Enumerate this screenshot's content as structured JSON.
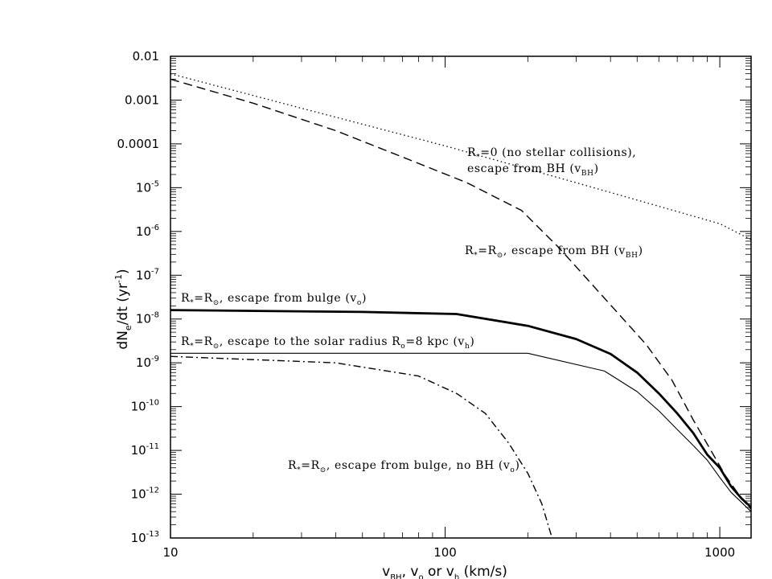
{
  "chart_data": {
    "type": "line",
    "title": "",
    "x_scale": "log",
    "y_scale": "log",
    "xlim": [
      10,
      1300
    ],
    "ylim": [
      1e-13,
      0.01
    ],
    "xlabel": {
      "main": "v",
      "s1": "BH",
      "m1": ", v",
      "s2": "o",
      "m2": " or v",
      "s3": "h",
      "m3": " (km/s)"
    },
    "ylabel": {
      "main": "dN",
      "sub": "e",
      "rest": "/dt (yr",
      "sup": "-1",
      "end": ")"
    },
    "x_ticks": [
      {
        "value": 10,
        "label": "10"
      },
      {
        "value": 100,
        "label": "100"
      },
      {
        "value": 1000,
        "label": "1000"
      }
    ],
    "y_ticks": [
      {
        "value": 0.01,
        "label": "0.01"
      },
      {
        "value": 0.001,
        "label": "0.001"
      },
      {
        "value": 0.0001,
        "label": "0.0001"
      },
      {
        "value": 1e-05,
        "base": "10",
        "exp": "-5"
      },
      {
        "value": 1e-06,
        "base": "10",
        "exp": "-6"
      },
      {
        "value": 1e-07,
        "base": "10",
        "exp": "-7"
      },
      {
        "value": 1e-08,
        "base": "10",
        "exp": "-8"
      },
      {
        "value": 1e-09,
        "base": "10",
        "exp": "-9"
      },
      {
        "value": 1e-10,
        "base": "10",
        "exp": "-10"
      },
      {
        "value": 1e-11,
        "base": "10",
        "exp": "-11"
      },
      {
        "value": 1e-12,
        "base": "10",
        "exp": "-12"
      },
      {
        "value": 1e-13,
        "base": "10",
        "exp": "-13"
      }
    ],
    "series": [
      {
        "style": "dotted",
        "points": [
          [
            10,
            0.004
          ],
          [
            30,
            0.00065
          ],
          [
            100,
            9e-05
          ],
          [
            300,
            1.3e-05
          ],
          [
            1000,
            1.5e-06
          ],
          [
            1300,
            6.5e-07
          ]
        ]
      },
      {
        "style": "dashed",
        "points": [
          [
            10,
            0.003
          ],
          [
            20,
            0.00085
          ],
          [
            40,
            0.0002
          ],
          [
            70,
            5e-05
          ],
          [
            120,
            1.3e-05
          ],
          [
            190,
            3e-06
          ],
          [
            260,
            4.2e-07
          ],
          [
            330,
            8e-08
          ],
          [
            420,
            1.5e-08
          ],
          [
            540,
            2.6e-09
          ],
          [
            670,
            4e-10
          ],
          [
            800,
            5e-11
          ],
          [
            920,
            1.1e-11
          ],
          [
            1050,
            2.6e-12
          ],
          [
            1200,
            8e-13
          ],
          [
            1300,
            4.5e-13
          ]
        ]
      },
      {
        "style": "thick",
        "points": [
          [
            10,
            1.6e-08
          ],
          [
            50,
            1.45e-08
          ],
          [
            110,
            1.3e-08
          ],
          [
            200,
            7e-09
          ],
          [
            300,
            3.5e-09
          ],
          [
            400,
            1.6e-09
          ],
          [
            500,
            6e-10
          ],
          [
            600,
            2e-10
          ],
          [
            700,
            7e-11
          ],
          [
            800,
            2.5e-11
          ],
          [
            900,
            8e-12
          ],
          [
            1000,
            4e-12
          ],
          [
            1100,
            1.5e-12
          ],
          [
            1200,
            8e-13
          ],
          [
            1300,
            5e-13
          ]
        ]
      },
      {
        "style": "thin",
        "points": [
          [
            10,
            1.65e-09
          ],
          [
            200,
            1.65e-09
          ],
          [
            380,
            6.5e-10
          ],
          [
            500,
            2.2e-10
          ],
          [
            600,
            8e-11
          ],
          [
            700,
            3e-11
          ],
          [
            800,
            1.3e-11
          ],
          [
            900,
            6e-12
          ],
          [
            1000,
            2.4e-12
          ],
          [
            1100,
            1.1e-12
          ],
          [
            1200,
            6.5e-13
          ],
          [
            1300,
            4e-13
          ]
        ]
      },
      {
        "style": "dashdot",
        "points": [
          [
            10,
            1.4e-09
          ],
          [
            40,
            1e-09
          ],
          [
            80,
            5e-10
          ],
          [
            110,
            2e-10
          ],
          [
            140,
            7e-11
          ],
          [
            170,
            1.5e-11
          ],
          [
            200,
            3e-12
          ],
          [
            225,
            6e-13
          ],
          [
            245,
            1e-13
          ]
        ]
      }
    ],
    "annotations": [
      {
        "id": "a1",
        "lines": [
          {
            "segs": [
              {
                "t": "R"
              },
              {
                "t": "*",
                "sub": true
              },
              {
                "t": "=0 (no stellar collisions),"
              }
            ]
          },
          {
            "segs": [
              {
                "t": "escape from BH (v"
              },
              {
                "t": "BH",
                "sub": true
              },
              {
                "t": ")"
              }
            ]
          }
        ]
      },
      {
        "id": "a2",
        "lines": [
          {
            "segs": [
              {
                "t": "R"
              },
              {
                "t": "*",
                "sub": true
              },
              {
                "t": "=R"
              },
              {
                "t": "⊙",
                "sub": true
              },
              {
                "t": ", escape from BH (v"
              },
              {
                "t": "BH",
                "sub": true
              },
              {
                "t": ")"
              }
            ]
          }
        ]
      },
      {
        "id": "a3",
        "lines": [
          {
            "segs": [
              {
                "t": "R"
              },
              {
                "t": "*",
                "sub": true
              },
              {
                "t": "=R"
              },
              {
                "t": "⊙",
                "sub": true
              },
              {
                "t": ", escape from bulge (v"
              },
              {
                "t": "o",
                "sub": true
              },
              {
                "t": ")"
              }
            ]
          }
        ]
      },
      {
        "id": "a4",
        "lines": [
          {
            "segs": [
              {
                "t": "R"
              },
              {
                "t": "*",
                "sub": true
              },
              {
                "t": "=R"
              },
              {
                "t": "⊙",
                "sub": true
              },
              {
                "t": ", escape to the solar radius R"
              },
              {
                "t": "o",
                "sub": true
              },
              {
                "t": "=8 kpc (v"
              },
              {
                "t": "h",
                "sub": true
              },
              {
                "t": ")"
              }
            ]
          }
        ]
      },
      {
        "id": "a5",
        "lines": [
          {
            "segs": [
              {
                "t": "R"
              },
              {
                "t": "*",
                "sub": true
              },
              {
                "t": "=R"
              },
              {
                "t": "⊙",
                "sub": true
              },
              {
                "t": ", escape from bulge, no BH (v"
              },
              {
                "t": "o",
                "sub": true
              },
              {
                "t": ")"
              }
            ]
          }
        ]
      }
    ]
  }
}
